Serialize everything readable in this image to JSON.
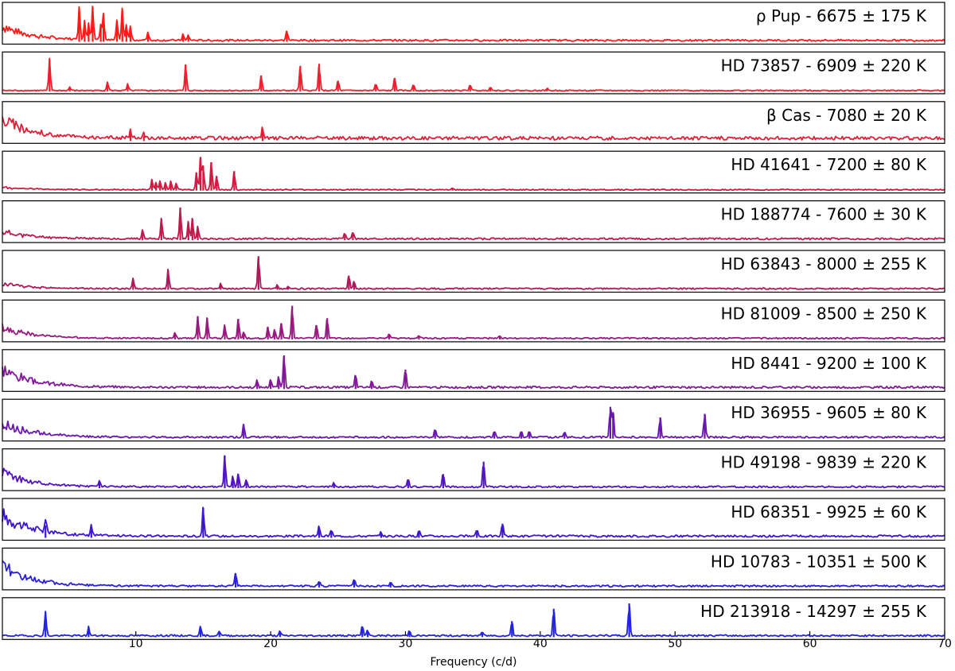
{
  "chart_data": {
    "type": "line",
    "xlabel": "Frequency (c/d)",
    "xlim": [
      0.1,
      70
    ],
    "xticks": [
      10,
      20,
      30,
      40,
      50,
      60,
      70
    ],
    "xtick_labels": [
      "10",
      "20",
      "30",
      "40",
      "50",
      "60",
      "70"
    ],
    "grid": false,
    "legend": "none",
    "panels": [
      {
        "star": "ρ Pup",
        "teff": "6675",
        "err": "175",
        "label": "ρ Pup - 6675 ± 175 K",
        "color": "#ff1a1a",
        "noise": 0.05,
        "lowfreq": 0.6,
        "peaks": [
          [
            5.8,
            0.95
          ],
          [
            6.2,
            0.55
          ],
          [
            6.5,
            0.5
          ],
          [
            6.8,
            0.98
          ],
          [
            7.4,
            0.45
          ],
          [
            7.6,
            0.78
          ],
          [
            8.6,
            0.58
          ],
          [
            9.0,
            0.9
          ],
          [
            9.3,
            0.45
          ],
          [
            9.6,
            0.4
          ],
          [
            10.9,
            0.25
          ],
          [
            13.5,
            0.18
          ],
          [
            13.9,
            0.15
          ],
          [
            21.2,
            0.3
          ]
        ]
      },
      {
        "star": "HD 73857",
        "teff": "6909",
        "err": "220",
        "label": "HD 73857 - 6909 ± 220 K",
        "color": "#ee1f2e",
        "noise": 0.03,
        "lowfreq": 0.0,
        "peaks": [
          [
            3.6,
            0.9
          ],
          [
            5.1,
            0.1
          ],
          [
            7.9,
            0.25
          ],
          [
            9.4,
            0.18
          ],
          [
            13.7,
            0.75
          ],
          [
            19.3,
            0.45
          ],
          [
            22.2,
            0.72
          ],
          [
            23.6,
            0.78
          ],
          [
            25.0,
            0.3
          ],
          [
            27.8,
            0.2
          ],
          [
            29.2,
            0.38
          ],
          [
            30.6,
            0.18
          ],
          [
            34.8,
            0.18
          ],
          [
            36.3,
            0.12
          ],
          [
            40.5,
            0.06
          ]
        ]
      },
      {
        "star": "β Cas",
        "teff": "7080",
        "err": "20",
        "label": "β Cas - 7080 ± 20 K",
        "color": "#e11f36",
        "noise": 0.1,
        "lowfreq": 0.8,
        "peaks": [
          [
            9.6,
            0.25
          ],
          [
            10.6,
            0.15
          ],
          [
            19.4,
            0.3
          ]
        ]
      },
      {
        "star": "HD 41641",
        "teff": "7200",
        "err": "80",
        "label": "HD 41641 - 7200 ± 80 K",
        "color": "#d01c40",
        "noise": 0.03,
        "lowfreq": 0.1,
        "peaks": [
          [
            11.2,
            0.3
          ],
          [
            11.5,
            0.22
          ],
          [
            11.8,
            0.25
          ],
          [
            12.2,
            0.2
          ],
          [
            12.6,
            0.25
          ],
          [
            13.0,
            0.2
          ],
          [
            14.5,
            0.5
          ],
          [
            14.8,
            0.95
          ],
          [
            15.0,
            0.7
          ],
          [
            15.6,
            0.8
          ],
          [
            16.0,
            0.4
          ],
          [
            17.3,
            0.55
          ],
          [
            33.5,
            0.05
          ]
        ]
      },
      {
        "star": "HD 188774",
        "teff": "7600",
        "err": "30",
        "label": "HD 188774 - 7600 ± 30 K",
        "color": "#c01a4c",
        "noise": 0.05,
        "lowfreq": 0.3,
        "peaks": [
          [
            10.5,
            0.28
          ],
          [
            11.9,
            0.6
          ],
          [
            13.3,
            0.92
          ],
          [
            13.9,
            0.5
          ],
          [
            14.2,
            0.6
          ],
          [
            14.6,
            0.35
          ],
          [
            25.5,
            0.15
          ],
          [
            26.1,
            0.22
          ]
        ]
      },
      {
        "star": "HD 63843",
        "teff": "8000",
        "err": "255",
        "label": "HD 63843 - 8000 ± 255 K",
        "color": "#ae185a",
        "noise": 0.04,
        "lowfreq": 0.2,
        "peaks": [
          [
            9.8,
            0.3
          ],
          [
            12.4,
            0.55
          ],
          [
            16.3,
            0.15
          ],
          [
            19.1,
            0.95
          ],
          [
            20.5,
            0.12
          ],
          [
            21.3,
            0.08
          ],
          [
            25.8,
            0.4
          ],
          [
            26.2,
            0.22
          ]
        ]
      },
      {
        "star": "HD 81009",
        "teff": "8500",
        "err": "250",
        "label": "HD 81009 - 8500 ± 250 K",
        "color": "#981a7e",
        "noise": 0.04,
        "lowfreq": 0.45,
        "peaks": [
          [
            12.9,
            0.15
          ],
          [
            14.6,
            0.65
          ],
          [
            15.3,
            0.6
          ],
          [
            16.6,
            0.38
          ],
          [
            17.6,
            0.58
          ],
          [
            18.0,
            0.2
          ],
          [
            19.8,
            0.35
          ],
          [
            20.3,
            0.25
          ],
          [
            20.8,
            0.45
          ],
          [
            21.6,
            0.95
          ],
          [
            23.4,
            0.4
          ],
          [
            24.2,
            0.6
          ],
          [
            28.8,
            0.15
          ],
          [
            31.0,
            0.08
          ],
          [
            37.0,
            0.08
          ]
        ]
      },
      {
        "star": "HD 8441",
        "teff": "9200",
        "err": "100",
        "label": "HD 8441 - 9200 ± 100 K",
        "color": "#84189a",
        "noise": 0.06,
        "lowfreq": 0.75,
        "peaks": [
          [
            19.0,
            0.2
          ],
          [
            20.0,
            0.25
          ],
          [
            20.6,
            0.3
          ],
          [
            21.0,
            0.95
          ],
          [
            26.3,
            0.38
          ],
          [
            27.5,
            0.2
          ],
          [
            30.0,
            0.55
          ]
        ]
      },
      {
        "star": "HD 36955",
        "teff": "9605",
        "err": "80",
        "label": "HD 36955 - 9605 ± 80 K",
        "color": "#6a17b0",
        "noise": 0.05,
        "lowfreq": 0.6,
        "peaks": [
          [
            18.0,
            0.4
          ],
          [
            32.2,
            0.25
          ],
          [
            36.6,
            0.2
          ],
          [
            38.6,
            0.2
          ],
          [
            39.2,
            0.2
          ],
          [
            41.8,
            0.18
          ],
          [
            45.2,
            0.9
          ],
          [
            45.4,
            0.75
          ],
          [
            48.9,
            0.6
          ],
          [
            52.2,
            0.7
          ]
        ]
      },
      {
        "star": "HD 49198",
        "teff": "9839",
        "err": "220",
        "label": "HD 49198 - 9839 ± 220 K",
        "color": "#5214c4",
        "noise": 0.05,
        "lowfreq": 0.6,
        "peaks": [
          [
            7.3,
            0.15
          ],
          [
            16.6,
            0.92
          ],
          [
            17.2,
            0.3
          ],
          [
            17.6,
            0.4
          ],
          [
            18.2,
            0.2
          ],
          [
            24.7,
            0.12
          ],
          [
            30.2,
            0.25
          ],
          [
            32.8,
            0.4
          ],
          [
            35.8,
            0.75
          ]
        ]
      },
      {
        "star": "HD 68351",
        "teff": "9925",
        "err": "60",
        "label": "HD 68351 - 9925 ± 60 K",
        "color": "#3c16d2",
        "noise": 0.06,
        "lowfreq": 0.9,
        "peaks": [
          [
            3.3,
            0.35
          ],
          [
            6.7,
            0.3
          ],
          [
            15.0,
            0.85
          ],
          [
            23.6,
            0.3
          ],
          [
            24.5,
            0.2
          ],
          [
            28.2,
            0.12
          ],
          [
            31.0,
            0.2
          ],
          [
            35.3,
            0.2
          ],
          [
            37.2,
            0.4
          ]
        ]
      },
      {
        "star": "HD 10783",
        "teff": "10351",
        "err": "500",
        "label": "HD 10783 - 10351 ± 500 K",
        "color": "#2c1fd8",
        "noise": 0.05,
        "lowfreq": 0.8,
        "peaks": [
          [
            17.4,
            0.4
          ],
          [
            23.6,
            0.15
          ],
          [
            26.2,
            0.2
          ],
          [
            28.9,
            0.12
          ]
        ]
      },
      {
        "star": "HD 213918",
        "teff": "14297",
        "err": "255",
        "label": "HD 213918 - 14297 ± 255 K",
        "color": "#2424e0",
        "noise": 0.05,
        "lowfreq": 0.0,
        "peaks": [
          [
            3.3,
            0.7
          ],
          [
            6.5,
            0.25
          ],
          [
            14.8,
            0.25
          ],
          [
            16.2,
            0.15
          ],
          [
            20.7,
            0.12
          ],
          [
            26.8,
            0.3
          ],
          [
            27.2,
            0.15
          ],
          [
            30.3,
            0.15
          ],
          [
            35.7,
            0.12
          ],
          [
            37.9,
            0.45
          ],
          [
            41.0,
            0.8
          ],
          [
            46.6,
            0.95
          ]
        ]
      }
    ]
  }
}
